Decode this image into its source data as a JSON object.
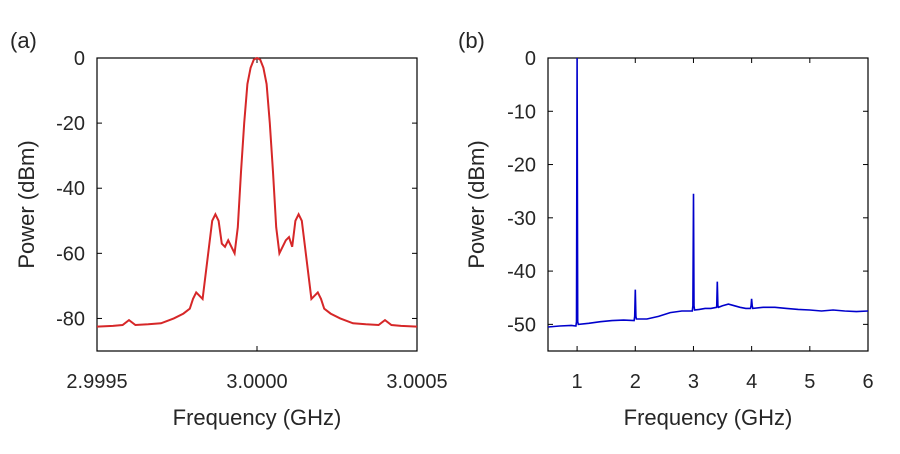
{
  "chart_data": [
    {
      "type": "line",
      "panel_label": "(a)",
      "xlabel": "Frequency (GHz)",
      "ylabel": "Power (dBm)",
      "xlim": [
        2.9995,
        3.0005
      ],
      "ylim": [
        -90,
        0
      ],
      "xticks": [
        2.9995,
        3.0,
        3.0005
      ],
      "xtick_labels": [
        "2.9995",
        "3.0000",
        "3.0005"
      ],
      "yticks": [
        0,
        -20,
        -40,
        -60,
        -80
      ],
      "ytick_labels": [
        "0",
        "-20",
        "-40",
        "-60",
        "-80"
      ],
      "grid": false,
      "series": [
        {
          "color": "#d62728",
          "x": [
            2.9995,
            2.99955,
            2.99958,
            2.9996,
            2.99962,
            2.99966,
            2.9997,
            2.99974,
            2.99977,
            2.99979,
            2.9998,
            2.99981,
            2.99983,
            2.99985,
            2.99986,
            2.99987,
            2.99988,
            2.99989,
            2.9999,
            2.99991,
            2.99992,
            2.99993,
            2.99994,
            2.99995,
            2.99996,
            2.99997,
            2.99998,
            2.99999,
            3.0,
            3.00001,
            3.00002,
            3.00003,
            3.00004,
            3.00005,
            3.00006,
            3.00007,
            3.00008,
            3.00009,
            3.0001,
            3.00011,
            3.00012,
            3.00013,
            3.00014,
            3.00015,
            3.00017,
            3.00019,
            3.0002,
            3.00021,
            3.00023,
            3.00026,
            3.0003,
            3.00034,
            3.00038,
            3.0004,
            3.00042,
            3.00045,
            3.0005
          ],
          "y": [
            -82.5,
            -82.3,
            -82,
            -80.5,
            -82,
            -81.8,
            -81.5,
            -80,
            -78.5,
            -77,
            -74,
            -72,
            -74,
            -58,
            -50,
            -48,
            -50,
            -57,
            -58,
            -56,
            -58,
            -60,
            -52,
            -35,
            -20,
            -8,
            -3,
            -0.5,
            0,
            -0.5,
            -3,
            -8,
            -20,
            -35,
            -52,
            -60,
            -58,
            -56,
            -55,
            -58,
            -50,
            -48,
            -50,
            -58,
            -74,
            -72,
            -74,
            -77,
            -78.5,
            -80,
            -81.5,
            -81.8,
            -82,
            -80.5,
            -82,
            -82.3,
            -82.5
          ]
        }
      ]
    },
    {
      "type": "line",
      "panel_label": "(b)",
      "xlabel": "Frequency (GHz)",
      "ylabel": "Power (dBm)",
      "xlim": [
        0.5,
        6
      ],
      "ylim": [
        -55,
        0
      ],
      "xticks": [
        1,
        2,
        3,
        4,
        5,
        6
      ],
      "xtick_labels": [
        "1",
        "2",
        "3",
        "4",
        "5",
        "6"
      ],
      "yticks": [
        0,
        -10,
        -20,
        -30,
        -40,
        -50
      ],
      "ytick_labels": [
        "0",
        "-10",
        "-20",
        "-30",
        "-40",
        "-50"
      ],
      "grid": false,
      "series": [
        {
          "color": "#0000cc",
          "x": [
            0.5,
            0.7,
            0.9,
            0.98,
            0.99,
            1.0,
            1.01,
            1.02,
            1.2,
            1.4,
            1.6,
            1.8,
            1.98,
            1.99,
            2.0,
            2.01,
            2.02,
            2.2,
            2.4,
            2.6,
            2.8,
            2.98,
            2.99,
            3.0,
            3.01,
            3.02,
            3.1,
            3.2,
            3.3,
            3.4,
            3.41,
            3.42,
            3.43,
            3.5,
            3.6,
            3.7,
            3.8,
            3.9,
            3.98,
            3.99,
            4.0,
            4.01,
            4.02,
            4.2,
            4.4,
            4.6,
            4.8,
            5.0,
            5.2,
            5.4,
            5.6,
            5.8,
            6.0
          ],
          "y": [
            -50.5,
            -50.3,
            -50.2,
            -50.3,
            -49.5,
            0,
            -49.5,
            -50,
            -49.8,
            -49.5,
            -49.3,
            -49.2,
            -49.3,
            -48.5,
            -43.5,
            -48.5,
            -49,
            -49,
            -48.5,
            -47.8,
            -47.5,
            -47.5,
            -46.5,
            -25.5,
            -46.5,
            -47.3,
            -47.2,
            -47,
            -47,
            -46.8,
            -42,
            -46.5,
            -46.8,
            -46.5,
            -46.2,
            -46.5,
            -46.8,
            -47,
            -47,
            -46.5,
            -45.2,
            -46.5,
            -47,
            -46.8,
            -46.8,
            -47,
            -47.2,
            -47.3,
            -47.5,
            -47.3,
            -47.5,
            -47.6,
            -47.5
          ]
        }
      ]
    }
  ]
}
